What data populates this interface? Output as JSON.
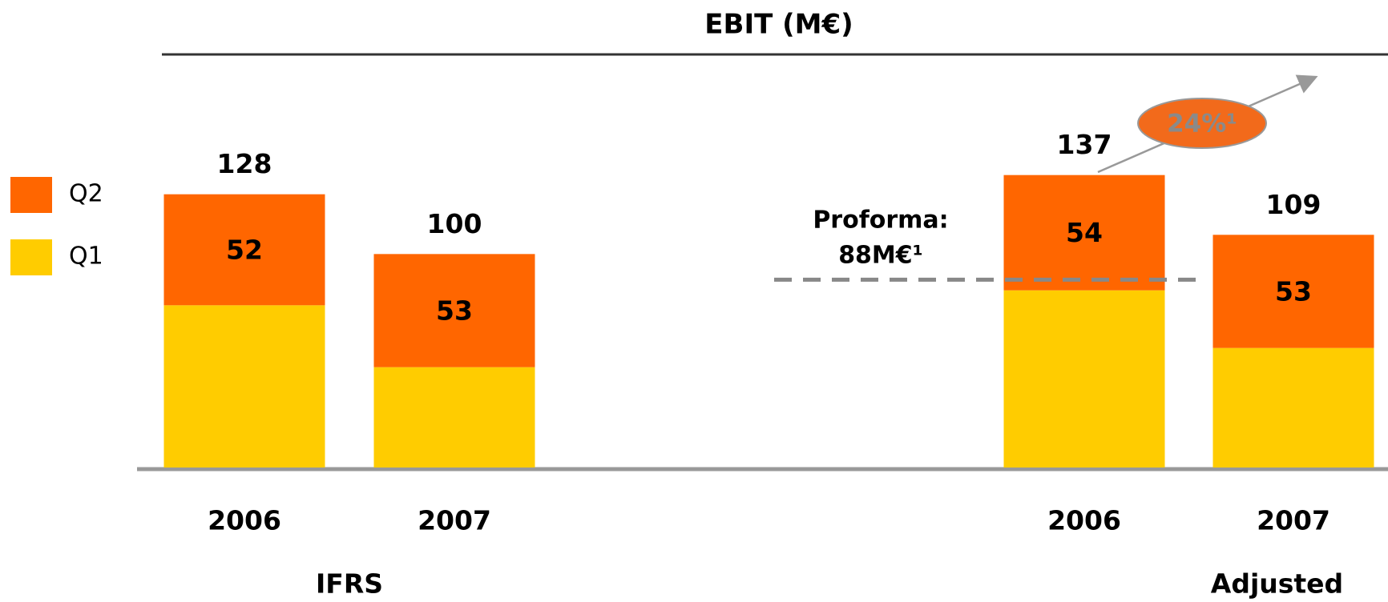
{
  "chart_data": {
    "type": "stacked_bar",
    "title": "EBIT (M€)",
    "categories": [
      "2006",
      "2007",
      "2006",
      "2007"
    ],
    "groups": [
      "IFRS",
      "Adjusted"
    ],
    "series": [
      {
        "name": "Q1",
        "color": "#ffcc00",
        "values": [
          76,
          47,
          83,
          56
        ]
      },
      {
        "name": "Q2",
        "color": "#ff6600",
        "values": [
          52,
          53,
          54,
          53
        ]
      }
    ],
    "totals": [
      128,
      100,
      137,
      109
    ],
    "ylim": [
      0,
      150
    ],
    "annotations": {
      "proforma": {
        "lines": [
          "Proforma:",
          "88M€¹"
        ],
        "value": 88
      },
      "growth": "24%¹"
    }
  }
}
